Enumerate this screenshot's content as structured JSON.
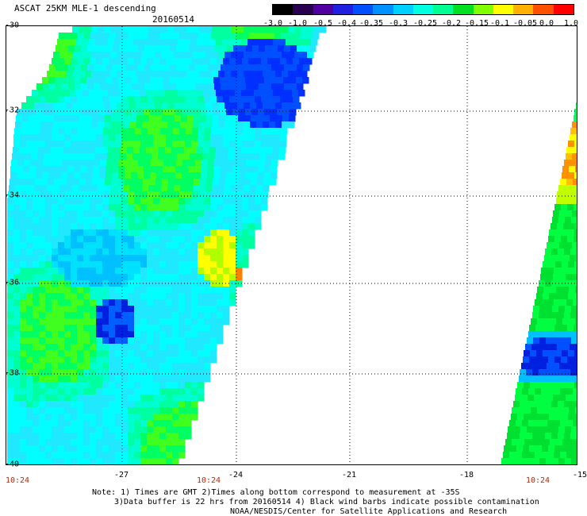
{
  "header": {
    "title": "ASCAT 25KM MLE-1 descending",
    "date": "20160514"
  },
  "colorbar": {
    "ticks": [
      "-3.0",
      "-1.0",
      "-0.5",
      "-0.4",
      "-0.35",
      "-0.3",
      "-0.25",
      "-0.2",
      "-0.15",
      "-0.1",
      "-0.05",
      "0.0",
      "1.0"
    ],
    "colors": [
      "#000000",
      "#2a0050",
      "#5000a0",
      "#2020e0",
      "#0050ff",
      "#0090ff",
      "#00d0ff",
      "#00ffe0",
      "#00ff90",
      "#00e020",
      "#80ff00",
      "#ffff00",
      "#ffb000",
      "#ff5000",
      "#ff0000"
    ]
  },
  "map": {
    "lat_labels": [
      "-30",
      "-32",
      "-34",
      "-36",
      "-38",
      "-40"
    ],
    "lon_labels": [
      "-27",
      "-24",
      "-21",
      "-18",
      "-15"
    ],
    "time_labels": [
      "10:24",
      "10:24",
      "10:24"
    ],
    "grid_color": "#000000"
  },
  "footer": {
    "note_line1": "Note: 1) Times are GMT 2)Times along bottom correspond to measurement at -35S",
    "note_line2": "3)Data buffer is 22 hrs from 20160514 4) Black wind barbs indicate possible contamination",
    "credit": "NOAA/NESDIS/Center for Satellite Applications and Research"
  }
}
